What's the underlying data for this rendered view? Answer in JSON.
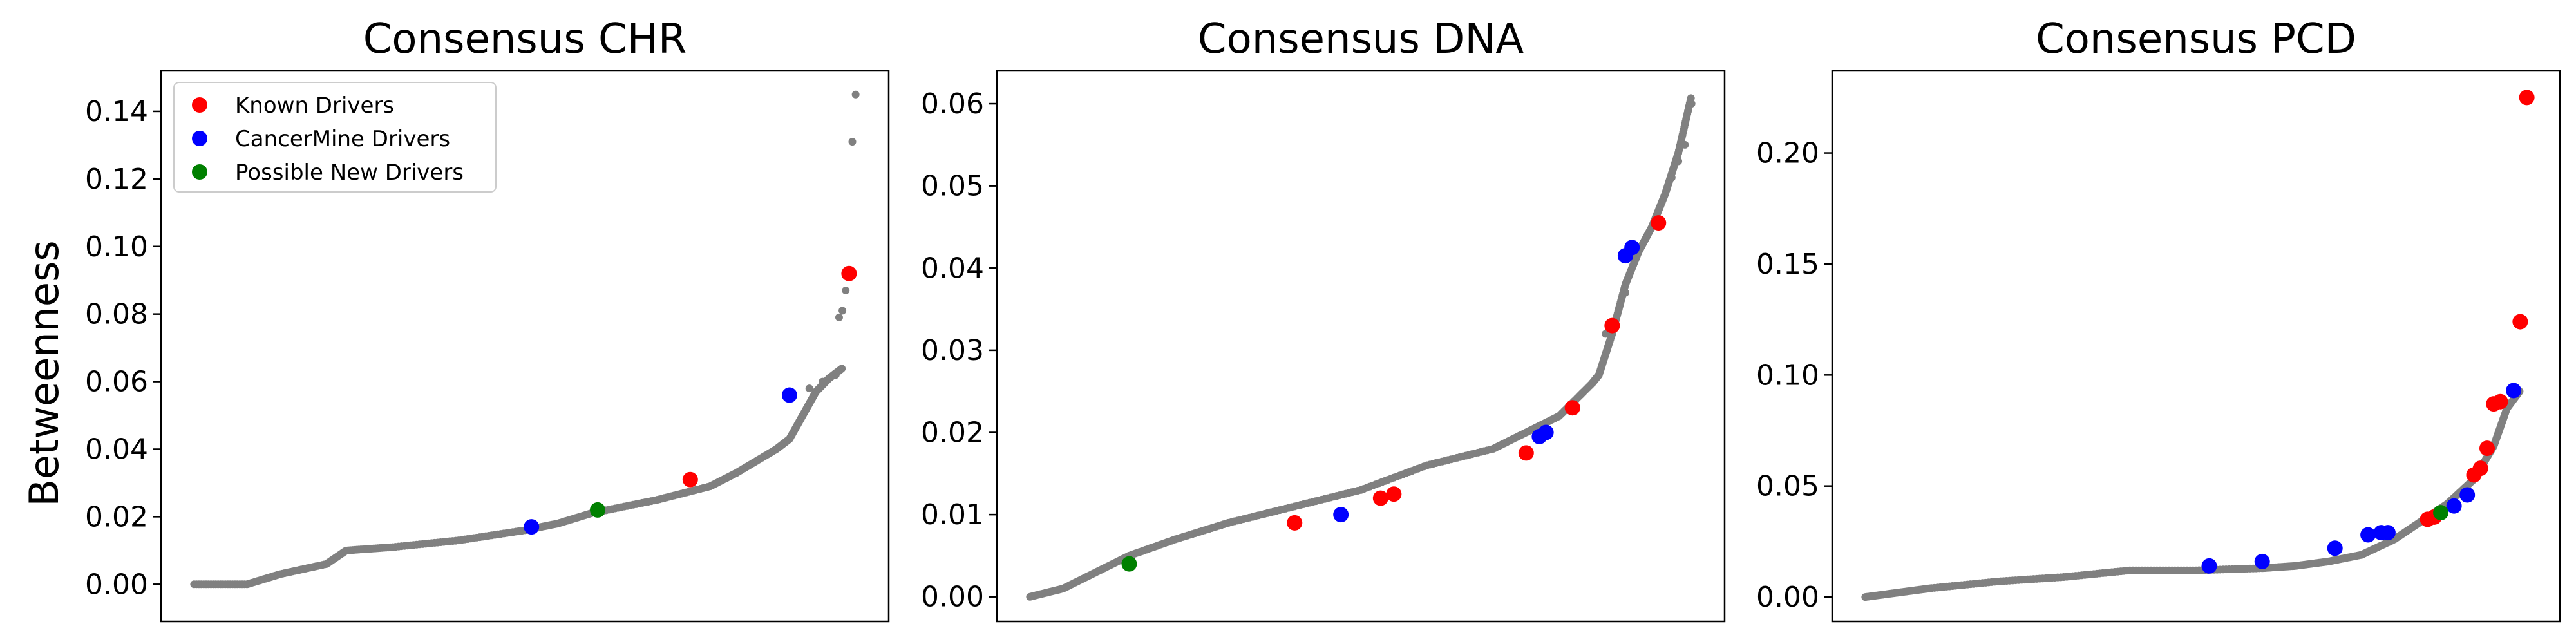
{
  "figure": {
    "ylabel": "Betweenness",
    "legend": [
      {
        "label": "Known Drivers",
        "color": "#ff0000"
      },
      {
        "label": "CancerMine Drivers",
        "color": "#0000ff"
      },
      {
        "label": "Possible New Drivers",
        "color": "#008000"
      }
    ],
    "background_color": "#808080"
  },
  "chart_data": [
    {
      "type": "scatter",
      "title": "Consensus CHR",
      "xlabel": "",
      "ylabel": "Betweenness",
      "ylim": [
        -0.011,
        0.152
      ],
      "yticks": [
        0.0,
        0.02,
        0.04,
        0.06,
        0.08,
        0.1,
        0.12,
        0.14
      ],
      "ytick_labels": [
        "0.00",
        "0.02",
        "0.04",
        "0.06",
        "0.08",
        "0.10",
        "0.12",
        "0.14"
      ],
      "xlim": [
        -0.05,
        1.05
      ],
      "legend_position": "top-left",
      "grid": false,
      "background_curve": [
        [
          0.0,
          0.0
        ],
        [
          0.08,
          0.0
        ],
        [
          0.13,
          0.003
        ],
        [
          0.2,
          0.006
        ],
        [
          0.23,
          0.01
        ],
        [
          0.3,
          0.011
        ],
        [
          0.4,
          0.013
        ],
        [
          0.5,
          0.016
        ],
        [
          0.55,
          0.018
        ],
        [
          0.6,
          0.021
        ],
        [
          0.7,
          0.025
        ],
        [
          0.78,
          0.029
        ],
        [
          0.82,
          0.033
        ],
        [
          0.88,
          0.04
        ],
        [
          0.9,
          0.043
        ],
        [
          0.92,
          0.05
        ],
        [
          0.94,
          0.057
        ],
        [
          0.96,
          0.061
        ],
        [
          0.98,
          0.064
        ]
      ],
      "background_points": [
        [
          0.93,
          0.058
        ],
        [
          0.95,
          0.06
        ],
        [
          0.97,
          0.062
        ],
        [
          0.975,
          0.079
        ],
        [
          0.98,
          0.081
        ],
        [
          0.985,
          0.087
        ],
        [
          0.995,
          0.131
        ],
        [
          1.0,
          0.145
        ]
      ],
      "series": [
        {
          "name": "Known Drivers",
          "points": [
            [
              0.75,
              0.031
            ],
            [
              0.99,
              0.092
            ]
          ]
        },
        {
          "name": "CancerMine Drivers",
          "points": [
            [
              0.51,
              0.017
            ],
            [
              0.9,
              0.056
            ]
          ]
        },
        {
          "name": "Possible New Drivers",
          "points": [
            [
              0.61,
              0.022
            ]
          ]
        }
      ]
    },
    {
      "type": "scatter",
      "title": "Consensus DNA",
      "xlabel": "",
      "ylabel": "",
      "ylim": [
        -0.003,
        0.064
      ],
      "yticks": [
        0.0,
        0.01,
        0.02,
        0.03,
        0.04,
        0.05,
        0.06
      ],
      "ytick_labels": [
        "0.00",
        "0.01",
        "0.02",
        "0.03",
        "0.04",
        "0.05",
        "0.06"
      ],
      "xlim": [
        -0.05,
        1.05
      ],
      "grid": false,
      "background_curve": [
        [
          0.0,
          0.0
        ],
        [
          0.05,
          0.001
        ],
        [
          0.1,
          0.003
        ],
        [
          0.15,
          0.005
        ],
        [
          0.22,
          0.007
        ],
        [
          0.3,
          0.009
        ],
        [
          0.4,
          0.011
        ],
        [
          0.5,
          0.013
        ],
        [
          0.6,
          0.016
        ],
        [
          0.7,
          0.018
        ],
        [
          0.75,
          0.02
        ],
        [
          0.8,
          0.022
        ],
        [
          0.85,
          0.026
        ],
        [
          0.86,
          0.027
        ],
        [
          0.88,
          0.032
        ],
        [
          0.9,
          0.038
        ],
        [
          0.92,
          0.042
        ],
        [
          0.94,
          0.045
        ],
        [
          0.96,
          0.049
        ],
        [
          0.98,
          0.054
        ],
        [
          1.0,
          0.061
        ]
      ],
      "background_points": [
        [
          0.87,
          0.032
        ],
        [
          0.89,
          0.035
        ],
        [
          0.9,
          0.037
        ],
        [
          0.97,
          0.051
        ],
        [
          0.98,
          0.053
        ],
        [
          0.99,
          0.055
        ],
        [
          1.0,
          0.06
        ]
      ],
      "series": [
        {
          "name": "Known Drivers",
          "points": [
            [
              0.4,
              0.009
            ],
            [
              0.53,
              0.012
            ],
            [
              0.55,
              0.0125
            ],
            [
              0.75,
              0.0175
            ],
            [
              0.82,
              0.023
            ],
            [
              0.88,
              0.033
            ],
            [
              0.95,
              0.0455
            ]
          ]
        },
        {
          "name": "CancerMine Drivers",
          "points": [
            [
              0.47,
              0.01
            ],
            [
              0.77,
              0.0195
            ],
            [
              0.78,
              0.02
            ],
            [
              0.9,
              0.0415
            ],
            [
              0.91,
              0.0425
            ]
          ]
        },
        {
          "name": "Possible New Drivers",
          "points": [
            [
              0.15,
              0.004
            ]
          ]
        }
      ]
    },
    {
      "type": "scatter",
      "title": "Consensus PCD",
      "xlabel": "",
      "ylabel": "",
      "ylim": [
        -0.011,
        0.237
      ],
      "yticks": [
        0.0,
        0.05,
        0.1,
        0.15,
        0.2
      ],
      "ytick_labels": [
        "0.00",
        "0.05",
        "0.10",
        "0.15",
        "0.20"
      ],
      "xlim": [
        -0.05,
        1.05
      ],
      "grid": false,
      "background_curve": [
        [
          0.0,
          0.0
        ],
        [
          0.05,
          0.002
        ],
        [
          0.1,
          0.004
        ],
        [
          0.2,
          0.007
        ],
        [
          0.3,
          0.009
        ],
        [
          0.4,
          0.012
        ],
        [
          0.5,
          0.012
        ],
        [
          0.6,
          0.013
        ],
        [
          0.65,
          0.014
        ],
        [
          0.7,
          0.016
        ],
        [
          0.75,
          0.019
        ],
        [
          0.8,
          0.026
        ],
        [
          0.84,
          0.034
        ],
        [
          0.88,
          0.042
        ],
        [
          0.92,
          0.053
        ],
        [
          0.95,
          0.068
        ],
        [
          0.97,
          0.085
        ],
        [
          0.99,
          0.093
        ]
      ],
      "background_points": [],
      "series": [
        {
          "name": "Known Drivers",
          "points": [
            [
              0.85,
              0.035
            ],
            [
              0.86,
              0.036
            ],
            [
              0.92,
              0.055
            ],
            [
              0.93,
              0.058
            ],
            [
              0.94,
              0.067
            ],
            [
              0.95,
              0.087
            ],
            [
              0.96,
              0.088
            ],
            [
              0.99,
              0.124
            ],
            [
              1.0,
              0.225
            ]
          ]
        },
        {
          "name": "CancerMine Drivers",
          "points": [
            [
              0.52,
              0.014
            ],
            [
              0.6,
              0.016
            ],
            [
              0.71,
              0.022
            ],
            [
              0.76,
              0.028
            ],
            [
              0.78,
              0.029
            ],
            [
              0.79,
              0.029
            ],
            [
              0.89,
              0.041
            ],
            [
              0.91,
              0.046
            ],
            [
              0.98,
              0.093
            ]
          ]
        },
        {
          "name": "Possible New Drivers",
          "points": [
            [
              0.87,
              0.038
            ]
          ]
        }
      ]
    }
  ]
}
